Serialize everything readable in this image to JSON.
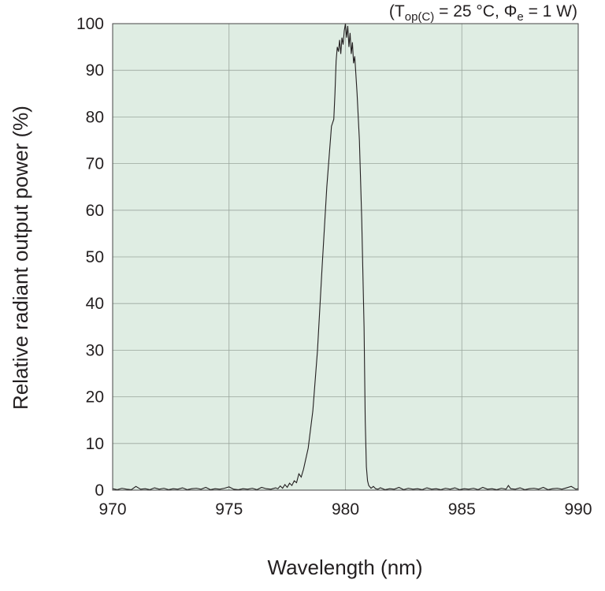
{
  "chart_data": {
    "type": "line",
    "xlabel": "Wavelength (nm)",
    "ylabel": "Relative radiant output power (%)",
    "xlim": [
      970,
      990
    ],
    "ylim": [
      0,
      100
    ],
    "x_ticks": [
      970,
      975,
      980,
      985,
      990
    ],
    "y_ticks": [
      0,
      10,
      20,
      30,
      40,
      50,
      60,
      70,
      80,
      90,
      100
    ],
    "grid": true,
    "background_color": "#dfede3",
    "line_color": "#231f20",
    "conditions": {
      "open": "(T",
      "sub": "op(C)",
      "rest": " = 25 °C, ",
      "phi": "Φ",
      "phi_sub": "e",
      "end": " = 1 W)"
    },
    "series": [
      {
        "x": [
          970.0,
          970.2,
          970.4,
          970.6,
          970.8,
          971.0,
          971.2,
          971.4,
          971.6,
          971.8,
          972.0,
          972.2,
          972.4,
          972.6,
          972.8,
          973.0,
          973.2,
          973.4,
          973.6,
          973.8,
          974.0,
          974.2,
          974.4,
          974.6,
          974.8,
          975.0,
          975.2,
          975.4,
          975.6,
          975.8,
          976.0,
          976.2,
          976.4,
          976.6,
          976.8,
          977.0,
          977.1,
          977.2,
          977.3,
          977.4,
          977.5,
          977.6,
          977.7,
          977.8,
          977.9,
          978.0,
          978.1,
          978.2,
          978.4,
          978.6,
          978.8,
          979.0,
          979.2,
          979.4,
          979.5,
          979.55,
          979.6,
          979.65,
          979.7,
          979.75,
          979.8,
          979.85,
          979.9,
          979.95,
          980.0,
          980.05,
          980.1,
          980.15,
          980.2,
          980.25,
          980.3,
          980.35,
          980.4,
          980.5,
          980.6,
          980.7,
          980.8,
          980.85,
          980.9,
          980.95,
          981.0,
          981.1,
          981.2,
          981.3,
          981.4,
          981.5,
          981.7,
          981.9,
          982.1,
          982.3,
          982.5,
          982.7,
          982.9,
          983.1,
          983.3,
          983.5,
          983.7,
          983.9,
          984.1,
          984.3,
          984.5,
          984.7,
          984.9,
          985.1,
          985.3,
          985.5,
          985.7,
          985.9,
          986.1,
          986.3,
          986.5,
          986.7,
          986.9,
          987.0,
          987.1,
          987.3,
          987.5,
          987.7,
          987.9,
          988.1,
          988.3,
          988.5,
          988.7,
          988.9,
          989.1,
          989.3,
          989.5,
          989.7,
          989.9,
          990.0
        ],
        "y": [
          0.3,
          0.1,
          0.4,
          0.2,
          0.1,
          0.8,
          0.2,
          0.3,
          0.1,
          0.5,
          0.2,
          0.4,
          0.1,
          0.3,
          0.2,
          0.5,
          0.1,
          0.3,
          0.4,
          0.2,
          0.6,
          0.1,
          0.3,
          0.2,
          0.4,
          0.7,
          0.2,
          0.1,
          0.3,
          0.2,
          0.4,
          0.1,
          0.6,
          0.3,
          0.2,
          0.5,
          0.3,
          0.9,
          0.4,
          1.2,
          0.6,
          1.5,
          1.0,
          2.0,
          1.6,
          3.5,
          2.8,
          4.5,
          9.0,
          17.0,
          30.0,
          48.0,
          65.0,
          78.0,
          79.5,
          85.0,
          92.0,
          95.0,
          94.0,
          96.5,
          93.5,
          97.0,
          95.5,
          98.5,
          100.0,
          97.0,
          99.5,
          95.0,
          98.0,
          93.5,
          96.0,
          91.5,
          93.0,
          85.0,
          75.0,
          58.0,
          35.0,
          15.0,
          5.0,
          2.0,
          1.0,
          0.4,
          0.8,
          0.3,
          0.2,
          0.5,
          0.1,
          0.3,
          0.2,
          0.6,
          0.1,
          0.4,
          0.2,
          0.3,
          0.1,
          0.5,
          0.2,
          0.3,
          0.1,
          0.4,
          0.2,
          0.5,
          0.1,
          0.3,
          0.2,
          0.4,
          0.1,
          0.6,
          0.2,
          0.3,
          0.1,
          0.4,
          0.2,
          1.0,
          0.3,
          0.2,
          0.5,
          0.1,
          0.3,
          0.4,
          0.2,
          0.6,
          0.1,
          0.3,
          0.4,
          0.2,
          0.5,
          0.8,
          0.2,
          0.3
        ]
      }
    ]
  }
}
